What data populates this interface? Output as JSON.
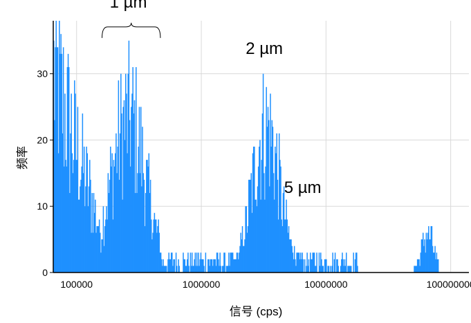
{
  "chart_data": {
    "type": "bar",
    "title": "",
    "xlabel": "信号 (cps)",
    "ylabel": "频率",
    "x_scale": "log",
    "xlim": [
      65000,
      140000000
    ],
    "ylim": [
      0,
      38
    ],
    "x_ticks": [
      100000,
      1000000,
      10000000,
      100000000
    ],
    "x_tick_labels": [
      "100000",
      "1000000",
      "10000000",
      "100000000"
    ],
    "y_ticks": [
      0,
      10,
      20,
      30
    ],
    "y_tick_labels": [
      "0",
      "10",
      "20",
      "30"
    ],
    "grid": true,
    "bar_color": "#1e90ff",
    "annotations": [
      {
        "text": "1 µm",
        "x": 260000,
        "y": 40,
        "bracket": [
          160000,
          470000
        ]
      },
      {
        "text": "2 µm",
        "x": 3200000,
        "y": 33
      },
      {
        "text": "5 µm",
        "x": 6500000,
        "y": 12
      }
    ],
    "clusters": [
      {
        "name": "",
        "center": 260000,
        "spread_decades": 0.14,
        "peak": 32,
        "x_range": [
          150000,
          480000
        ]
      },
      {
        "name": "",
        "center": 3300000,
        "spread_decades": 0.11,
        "peak": 30,
        "x_range": [
          1800000,
          6500000
        ]
      },
      {
        "name": "",
        "center": 65000000,
        "spread_decades": 0.05,
        "peak": 8,
        "x_range": [
          45000000,
          80000000
        ]
      }
    ],
    "background_range": [
      65000,
      18000000
    ],
    "background_level": 2,
    "near_zero_cluster": {
      "x_range": [
        65000,
        150000
      ],
      "level": 38
    }
  }
}
